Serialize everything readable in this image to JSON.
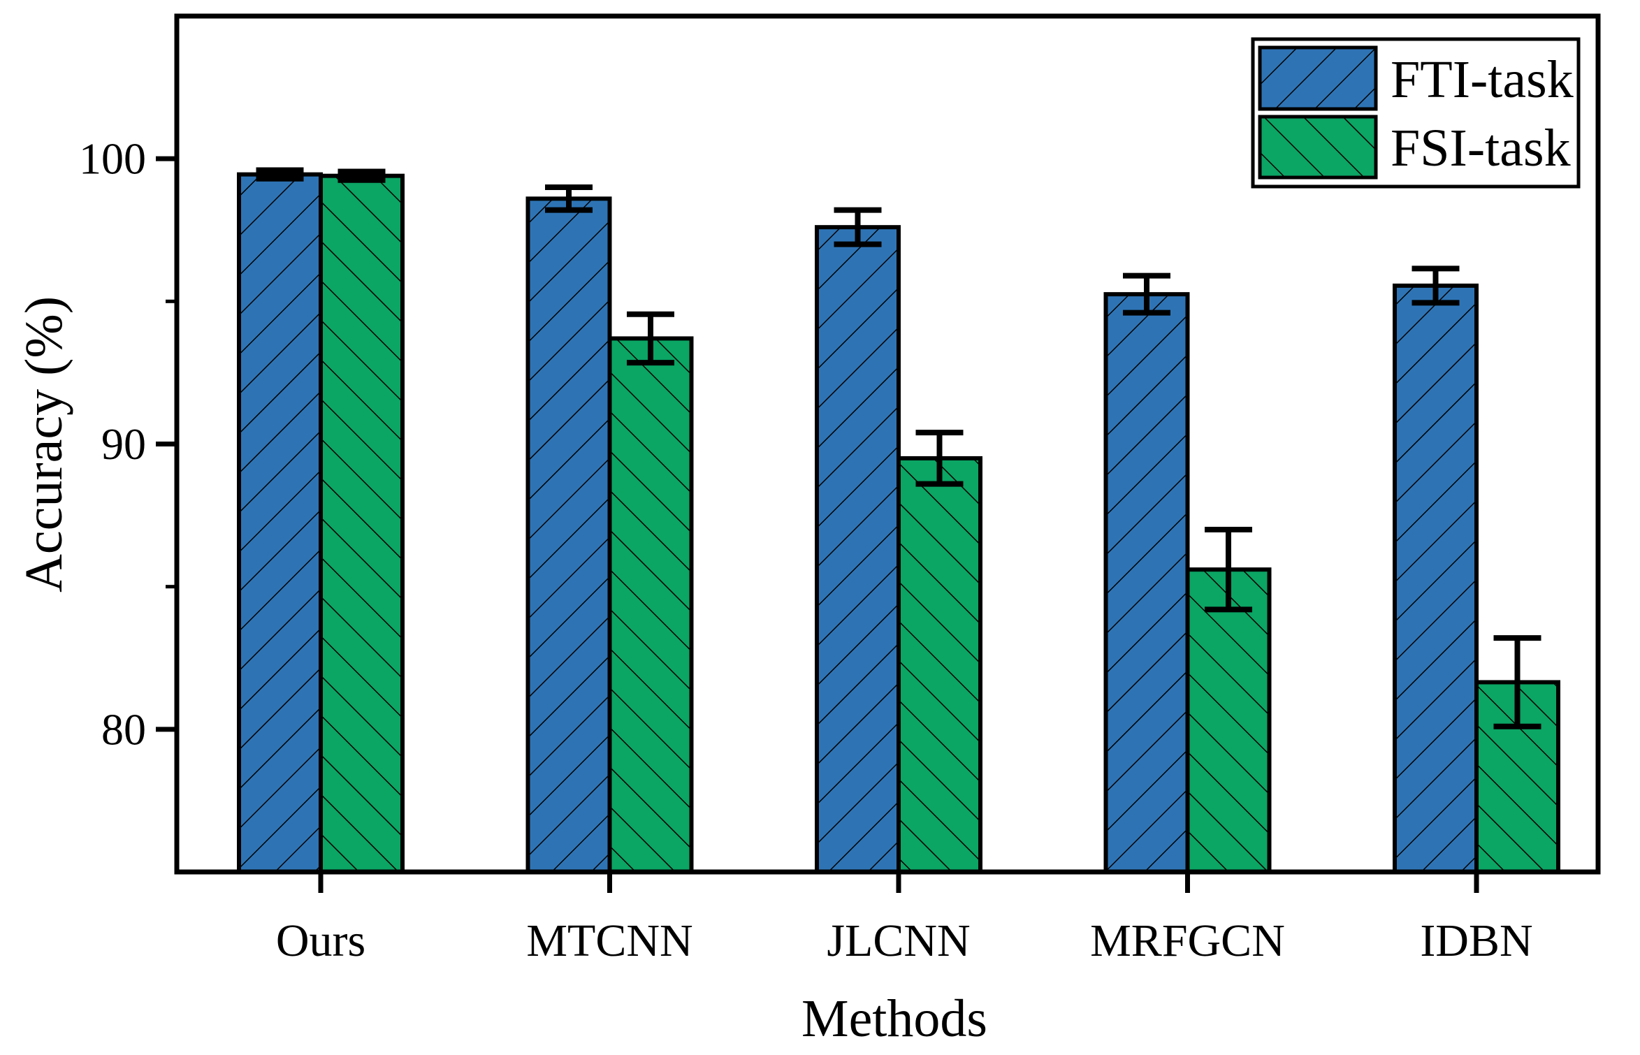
{
  "figure": {
    "background": "#ffffff",
    "frame_color": "#000000"
  },
  "chart_data": {
    "type": "bar",
    "title": "",
    "xlabel": "Methods",
    "ylabel": "Accuracy (%)",
    "categories": [
      "Ours",
      "MTCNN",
      "JLCNN",
      "MRFGCN",
      "IDBN"
    ],
    "series": [
      {
        "name": "FTI-task",
        "color": "#2E74B5",
        "hatch": "/",
        "values": [
          99.45,
          98.6,
          97.6,
          95.25,
          95.55
        ],
        "errors": [
          0.15,
          0.4,
          0.6,
          0.65,
          0.6
        ]
      },
      {
        "name": "FSI-task",
        "color": "#0BA564",
        "hatch": "\\",
        "values": [
          99.4,
          93.7,
          89.5,
          85.6,
          81.65
        ],
        "errors": [
          0.15,
          0.85,
          0.9,
          1.4,
          1.55
        ]
      }
    ],
    "ylim": [
      75,
      105
    ],
    "yticks_major": [
      80,
      90,
      100
    ],
    "yticks_minor": [
      85,
      95
    ],
    "grid": false,
    "legend_position": "top-right",
    "error_bar_color": "#000000",
    "bar_edge_color": "#000000"
  }
}
